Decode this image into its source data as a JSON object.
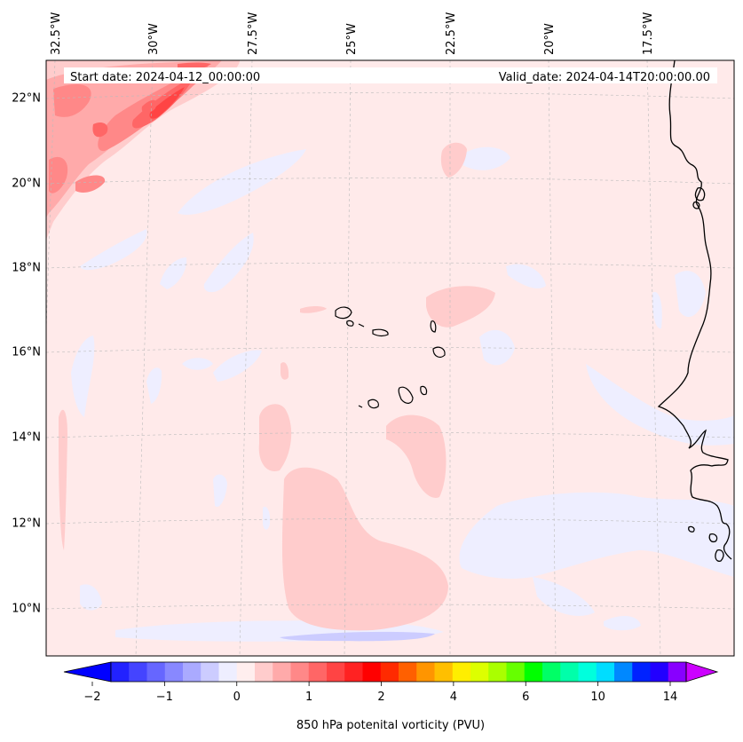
{
  "map": {
    "start_label": "Start date: 2024-04-12_00:00:00",
    "valid_label": "Valid_date: 2024-04-14T20:00:00.00",
    "lon_labels": [
      "32.5°W",
      "30°W",
      "27.5°W",
      "25°W",
      "22.5°W",
      "20°W",
      "17.5°W"
    ],
    "lat_labels": [
      "22°N",
      "20°N",
      "18°N",
      "16°N",
      "14°N",
      "12°N",
      "10°N"
    ]
  },
  "colorbar": {
    "label": "850 hPa potenital vorticity (PVU)",
    "ticks": [
      "−2",
      "−1",
      "0",
      "1",
      "2",
      "4",
      "6",
      "10",
      "14"
    ],
    "colors": [
      "#0000ff",
      "#2222ff",
      "#4444ff",
      "#6666ff",
      "#8888ff",
      "#aaaaff",
      "#ccccff",
      "#eeeeff",
      "#ffeeee",
      "#ffcccc",
      "#ffaaaa",
      "#ff8888",
      "#ff6666",
      "#ff4444",
      "#ff2222",
      "#ff0000",
      "#ff2a00",
      "#ff6000",
      "#ff9500",
      "#ffbf00",
      "#ffee00",
      "#ddff00",
      "#aaff00",
      "#66ff00",
      "#00ff00",
      "#00ff66",
      "#00ffaa",
      "#00ffdd",
      "#00ddff",
      "#0088ff",
      "#0022ff",
      "#2200ff",
      "#8800ff",
      "#cc00ff"
    ]
  }
}
